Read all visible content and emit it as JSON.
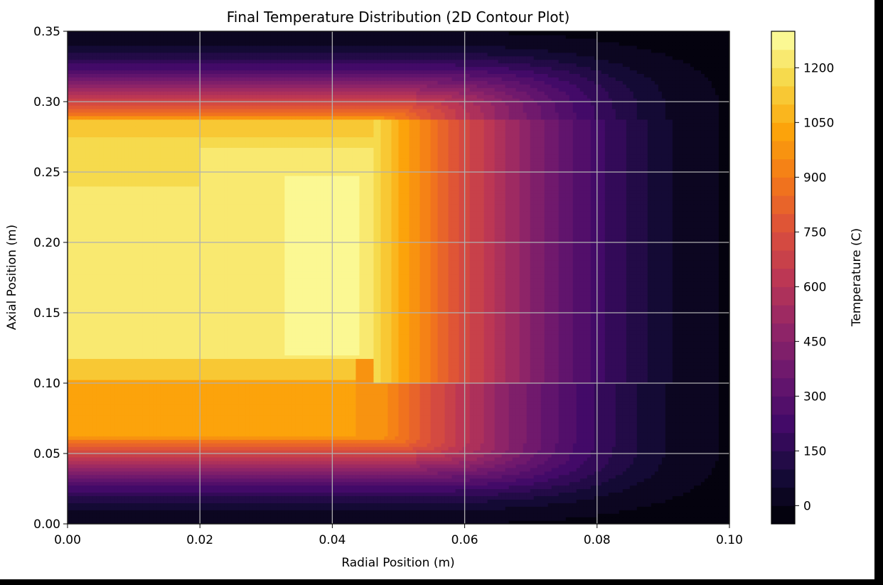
{
  "chart_data": {
    "type": "heatmap",
    "subtype": "filled-contour",
    "title": "Final Temperature Distribution (2D Contour Plot)",
    "xlabel": "Radial Position (m)",
    "ylabel": "Axial Position (m)",
    "colorbar_label": "Temperature (C)",
    "colormap": "inferno",
    "xlim": [
      0,
      0.1
    ],
    "ylim": [
      0,
      0.35
    ],
    "x_ticks": [
      "0.00",
      "0.02",
      "0.04",
      "0.06",
      "0.08",
      "0.10"
    ],
    "y_ticks": [
      "0.00",
      "0.05",
      "0.10",
      "0.15",
      "0.20",
      "0.25",
      "0.30",
      "0.35"
    ],
    "colorbar_range": [
      -50,
      1300
    ],
    "colorbar_ticks": [
      "0",
      "150",
      "300",
      "450",
      "600",
      "750",
      "900",
      "1050",
      "1200"
    ],
    "grid": true,
    "regions": {
      "core_peak_temperature": 1280,
      "core_plateau_temperature": 1240,
      "lower_band_temperature": 1000,
      "ambient_temperature": 0
    }
  }
}
